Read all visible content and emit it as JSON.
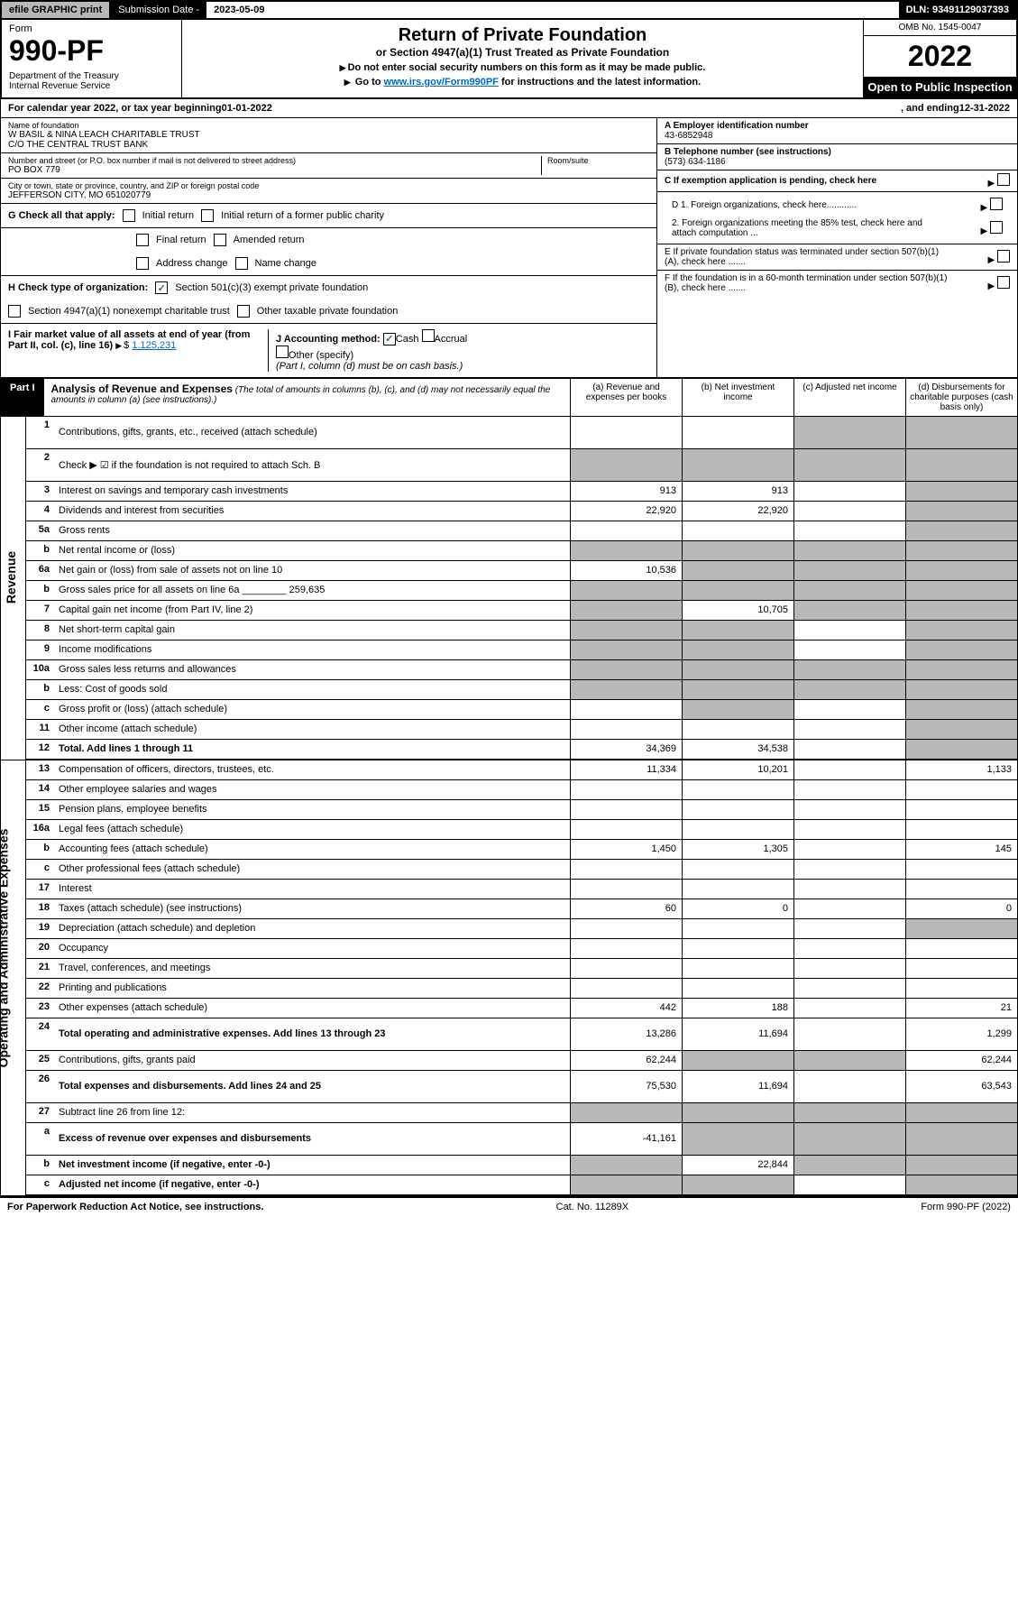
{
  "topbar": {
    "efile": "efile GRAPHIC print",
    "sub_label": "Submission Date - ",
    "sub_date": "2023-05-09",
    "dln": "DLN: 93491129037393"
  },
  "header": {
    "form_label": "Form",
    "form_num": "990-PF",
    "dept": "Department of the Treasury\nInternal Revenue Service",
    "title": "Return of Private Foundation",
    "subtitle": "or Section 4947(a)(1) Trust Treated as Private Foundation",
    "note1": "Do not enter social security numbers on this form as it may be made public.",
    "note2_pre": "Go to ",
    "note2_link": "www.irs.gov/Form990PF",
    "note2_post": " for instructions and the latest information.",
    "omb": "OMB No. 1545-0047",
    "year": "2022",
    "inspection": "Open to Public Inspection"
  },
  "calyear": {
    "pre": "For calendar year 2022, or tax year beginning ",
    "begin": "01-01-2022",
    "mid": ", and ending ",
    "end": "12-31-2022"
  },
  "info": {
    "name_label": "Name of foundation",
    "name1": "W BASIL & NINA LEACH CHARITABLE TRUST",
    "name2": "C/O THE CENTRAL TRUST BANK",
    "addr_label": "Number and street (or P.O. box number if mail is not delivered to street address)",
    "addr": "PO BOX 779",
    "room_label": "Room/suite",
    "city_label": "City or town, state or province, country, and ZIP or foreign postal code",
    "city": "JEFFERSON CITY, MO  651020779",
    "a_label": "A Employer identification number",
    "a_val": "43-6852948",
    "b_label": "B Telephone number (see instructions)",
    "b_val": "(573) 634-1186",
    "c_label": "C If exemption application is pending, check here",
    "d1": "D 1. Foreign organizations, check here............",
    "d2": "2. Foreign organizations meeting the 85% test, check here and attach computation ...",
    "e_label": "E  If private foundation status was terminated under section 507(b)(1)(A), check here .......",
    "f_label": "F  If the foundation is in a 60-month termination under section 507(b)(1)(B), check here .......",
    "g_label": "G Check all that apply:",
    "g_initial": "Initial return",
    "g_final": "Final return",
    "g_addr": "Address change",
    "g_initial_former": "Initial return of a former public charity",
    "g_amended": "Amended return",
    "g_name": "Name change",
    "h_label": "H Check type of organization:",
    "h_501c3": "Section 501(c)(3) exempt private foundation",
    "h_4947": "Section 4947(a)(1) nonexempt charitable trust",
    "h_other": "Other taxable private foundation",
    "i_label": "I Fair market value of all assets at end of year (from Part II, col. (c), line 16) ",
    "i_val": "1,125,231",
    "j_label": "J Accounting method:",
    "j_cash": "Cash",
    "j_accrual": "Accrual",
    "j_other": "Other (specify)",
    "j_note": "(Part I, column (d) must be on cash basis.)"
  },
  "part1": {
    "label": "Part I",
    "title": "Analysis of Revenue and Expenses",
    "note": "(The total of amounts in columns (b), (c), and (d) may not necessarily equal the amounts in column (a) (see instructions).)",
    "col_a": "(a) Revenue and expenses per books",
    "col_b": "(b) Net investment income",
    "col_c": "(c) Adjusted net income",
    "col_d": "(d) Disbursements for charitable purposes (cash basis only)"
  },
  "sections": {
    "revenue": "Revenue",
    "expenses": "Operating and Administrative Expenses"
  },
  "rows": [
    {
      "n": "1",
      "d": "Contributions, gifts, grants, etc., received (attach schedule)",
      "a": "",
      "b": "",
      "c": "",
      "dd": "",
      "cg": true,
      "dg": true,
      "tall": true
    },
    {
      "n": "2",
      "d": "Check ▶ ☑ if the foundation is not required to attach Sch. B",
      "a": "",
      "b": "",
      "c": "",
      "dd": "",
      "ag": true,
      "bg": true,
      "cg": true,
      "dg": true,
      "tall": true
    },
    {
      "n": "3",
      "d": "Interest on savings and temporary cash investments",
      "a": "913",
      "b": "913",
      "c": "",
      "dd": "",
      "dg": true
    },
    {
      "n": "4",
      "d": "Dividends and interest from securities",
      "a": "22,920",
      "b": "22,920",
      "c": "",
      "dd": "",
      "dg": true
    },
    {
      "n": "5a",
      "d": "Gross rents",
      "a": "",
      "b": "",
      "c": "",
      "dd": "",
      "dg": true
    },
    {
      "n": "b",
      "d": "Net rental income or (loss)",
      "a": "",
      "b": "",
      "c": "",
      "dd": "",
      "ag": true,
      "bg": true,
      "cg": true,
      "dg": true
    },
    {
      "n": "6a",
      "d": "Net gain or (loss) from sale of assets not on line 10",
      "a": "10,536",
      "b": "",
      "c": "",
      "dd": "",
      "bg": true,
      "cg": true,
      "dg": true
    },
    {
      "n": "b",
      "d": "Gross sales price for all assets on line 6a ________ 259,635",
      "a": "",
      "b": "",
      "c": "",
      "dd": "",
      "ag": true,
      "bg": true,
      "cg": true,
      "dg": true
    },
    {
      "n": "7",
      "d": "Capital gain net income (from Part IV, line 2)",
      "a": "",
      "b": "10,705",
      "c": "",
      "dd": "",
      "ag": true,
      "cg": true,
      "dg": true
    },
    {
      "n": "8",
      "d": "Net short-term capital gain",
      "a": "",
      "b": "",
      "c": "",
      "dd": "",
      "ag": true,
      "bg": true,
      "dg": true
    },
    {
      "n": "9",
      "d": "Income modifications",
      "a": "",
      "b": "",
      "c": "",
      "dd": "",
      "ag": true,
      "bg": true,
      "dg": true
    },
    {
      "n": "10a",
      "d": "Gross sales less returns and allowances",
      "a": "",
      "b": "",
      "c": "",
      "dd": "",
      "ag": true,
      "bg": true,
      "cg": true,
      "dg": true
    },
    {
      "n": "b",
      "d": "Less: Cost of goods sold",
      "a": "",
      "b": "",
      "c": "",
      "dd": "",
      "ag": true,
      "bg": true,
      "cg": true,
      "dg": true
    },
    {
      "n": "c",
      "d": "Gross profit or (loss) (attach schedule)",
      "a": "",
      "b": "",
      "c": "",
      "dd": "",
      "bg": true,
      "dg": true
    },
    {
      "n": "11",
      "d": "Other income (attach schedule)",
      "a": "",
      "b": "",
      "c": "",
      "dd": "",
      "dg": true
    },
    {
      "n": "12",
      "d": "Total. Add lines 1 through 11",
      "a": "34,369",
      "b": "34,538",
      "c": "",
      "dd": "",
      "dg": true,
      "bold": true
    }
  ],
  "exp_rows": [
    {
      "n": "13",
      "d": "Compensation of officers, directors, trustees, etc.",
      "a": "11,334",
      "b": "10,201",
      "c": "",
      "dd": "1,133"
    },
    {
      "n": "14",
      "d": "Other employee salaries and wages",
      "a": "",
      "b": "",
      "c": "",
      "dd": ""
    },
    {
      "n": "15",
      "d": "Pension plans, employee benefits",
      "a": "",
      "b": "",
      "c": "",
      "dd": ""
    },
    {
      "n": "16a",
      "d": "Legal fees (attach schedule)",
      "a": "",
      "b": "",
      "c": "",
      "dd": ""
    },
    {
      "n": "b",
      "d": "Accounting fees (attach schedule)",
      "a": "1,450",
      "b": "1,305",
      "c": "",
      "dd": "145"
    },
    {
      "n": "c",
      "d": "Other professional fees (attach schedule)",
      "a": "",
      "b": "",
      "c": "",
      "dd": ""
    },
    {
      "n": "17",
      "d": "Interest",
      "a": "",
      "b": "",
      "c": "",
      "dd": ""
    },
    {
      "n": "18",
      "d": "Taxes (attach schedule) (see instructions)",
      "a": "60",
      "b": "0",
      "c": "",
      "dd": "0"
    },
    {
      "n": "19",
      "d": "Depreciation (attach schedule) and depletion",
      "a": "",
      "b": "",
      "c": "",
      "dd": "",
      "dg": true
    },
    {
      "n": "20",
      "d": "Occupancy",
      "a": "",
      "b": "",
      "c": "",
      "dd": ""
    },
    {
      "n": "21",
      "d": "Travel, conferences, and meetings",
      "a": "",
      "b": "",
      "c": "",
      "dd": ""
    },
    {
      "n": "22",
      "d": "Printing and publications",
      "a": "",
      "b": "",
      "c": "",
      "dd": ""
    },
    {
      "n": "23",
      "d": "Other expenses (attach schedule)",
      "a": "442",
      "b": "188",
      "c": "",
      "dd": "21"
    },
    {
      "n": "24",
      "d": "Total operating and administrative expenses. Add lines 13 through 23",
      "a": "13,286",
      "b": "11,694",
      "c": "",
      "dd": "1,299",
      "bold": true,
      "tall": true
    },
    {
      "n": "25",
      "d": "Contributions, gifts, grants paid",
      "a": "62,244",
      "b": "",
      "c": "",
      "dd": "62,244",
      "bg": true,
      "cg": true
    },
    {
      "n": "26",
      "d": "Total expenses and disbursements. Add lines 24 and 25",
      "a": "75,530",
      "b": "11,694",
      "c": "",
      "dd": "63,543",
      "bold": true,
      "tall": true
    }
  ],
  "bottom_rows": [
    {
      "n": "27",
      "d": "Subtract line 26 from line 12:",
      "a": "",
      "b": "",
      "c": "",
      "dd": "",
      "ag": true,
      "bg": true,
      "cg": true,
      "dg": true
    },
    {
      "n": "a",
      "d": "Excess of revenue over expenses and disbursements",
      "a": "-41,161",
      "b": "",
      "c": "",
      "dd": "",
      "bg": true,
      "cg": true,
      "dg": true,
      "bold": true,
      "tall": true
    },
    {
      "n": "b",
      "d": "Net investment income (if negative, enter -0-)",
      "a": "",
      "b": "22,844",
      "c": "",
      "dd": "",
      "ag": true,
      "cg": true,
      "dg": true,
      "bold": true
    },
    {
      "n": "c",
      "d": "Adjusted net income (if negative, enter -0-)",
      "a": "",
      "b": "",
      "c": "",
      "dd": "",
      "ag": true,
      "bg": true,
      "dg": true,
      "bold": true
    }
  ],
  "footer": {
    "left": "For Paperwork Reduction Act Notice, see instructions.",
    "mid": "Cat. No. 11289X",
    "right": "Form 990-PF (2022)"
  }
}
